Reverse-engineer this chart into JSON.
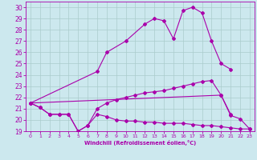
{
  "xlabel": "Windchill (Refroidissement éolien,°C)",
  "bg_color": "#cce8ee",
  "line_color": "#aa00aa",
  "grid_color": "#aacccc",
  "xlim": [
    -0.5,
    23.5
  ],
  "ylim": [
    19,
    30.5
  ],
  "yticks": [
    19,
    20,
    21,
    22,
    23,
    24,
    25,
    26,
    27,
    28,
    29,
    30
  ],
  "xticks": [
    0,
    1,
    2,
    3,
    4,
    5,
    6,
    7,
    8,
    9,
    10,
    11,
    12,
    13,
    14,
    15,
    16,
    17,
    18,
    19,
    20,
    21,
    22,
    23
  ],
  "line1_x": [
    0,
    1,
    2,
    3,
    4,
    5,
    6,
    7,
    8,
    9,
    10,
    11,
    12,
    13,
    14,
    15,
    16,
    17,
    18,
    19,
    20,
    21,
    22,
    23
  ],
  "line1_y": [
    21.5,
    21.1,
    20.5,
    20.5,
    20.5,
    19.0,
    19.5,
    20.5,
    20.3,
    20.0,
    19.9,
    19.9,
    19.8,
    19.8,
    19.7,
    19.7,
    19.7,
    19.6,
    19.5,
    19.5,
    19.4,
    19.3,
    19.2,
    19.2
  ],
  "line2_x": [
    0,
    1,
    2,
    3,
    4,
    5,
    6,
    7,
    8,
    9,
    10,
    11,
    12,
    13,
    14,
    15,
    16,
    17,
    18,
    19,
    20,
    21
  ],
  "line2_y": [
    21.5,
    21.1,
    20.5,
    20.5,
    20.5,
    19.0,
    19.5,
    21.0,
    21.5,
    21.8,
    22.0,
    22.2,
    22.4,
    22.5,
    22.6,
    22.8,
    23.0,
    23.2,
    23.4,
    23.5,
    22.2,
    20.5
  ],
  "line3_x": [
    0,
    7,
    8,
    10,
    12,
    13,
    14,
    15,
    16,
    17,
    18,
    19,
    20,
    21
  ],
  "line3_y": [
    21.5,
    24.3,
    26.0,
    27.0,
    28.5,
    29.0,
    28.8,
    27.2,
    29.7,
    30.0,
    29.5,
    27.0,
    25.0,
    24.5
  ],
  "line4_x": [
    0,
    20,
    21,
    22,
    23
  ],
  "line4_y": [
    21.5,
    22.2,
    20.4,
    20.1,
    19.2
  ]
}
